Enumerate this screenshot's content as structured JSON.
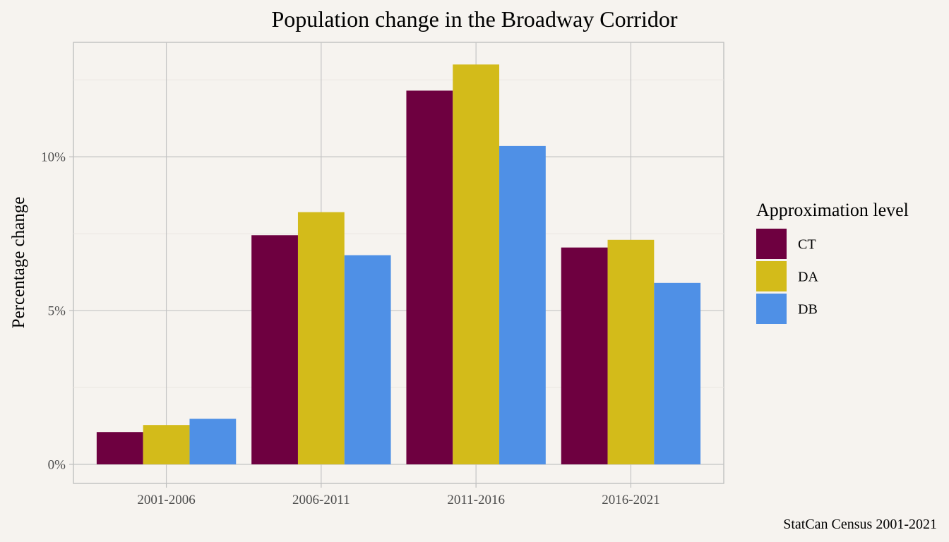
{
  "chart_data": {
    "type": "bar",
    "title": "Population change in the Broadway Corridor",
    "xlabel": "",
    "ylabel": "Percentage change",
    "categories": [
      "2001-2006",
      "2006-2011",
      "2011-2016",
      "2016-2021"
    ],
    "series": [
      {
        "name": "CT",
        "color": "#6e0040",
        "values": [
          1.05,
          7.45,
          12.15,
          7.05
        ]
      },
      {
        "name": "DA",
        "color": "#d3bb1a",
        "values": [
          1.28,
          8.2,
          13.0,
          7.3
        ]
      },
      {
        "name": "DB",
        "color": "#4f90e6",
        "values": [
          1.48,
          6.8,
          10.35,
          5.9
        ]
      }
    ],
    "ylim": [
      -0.62,
      13.72
    ],
    "y_ticks": [
      {
        "value": 0,
        "label": "0%"
      },
      {
        "value": 5,
        "label": "5%"
      },
      {
        "value": 10,
        "label": "10%"
      }
    ],
    "y_minor_ticks": [
      2.5,
      7.5,
      12.5
    ],
    "legend": {
      "title": "Approximation level",
      "position": "right"
    },
    "caption": "StatCan Census 2001-2021",
    "grid": true
  }
}
